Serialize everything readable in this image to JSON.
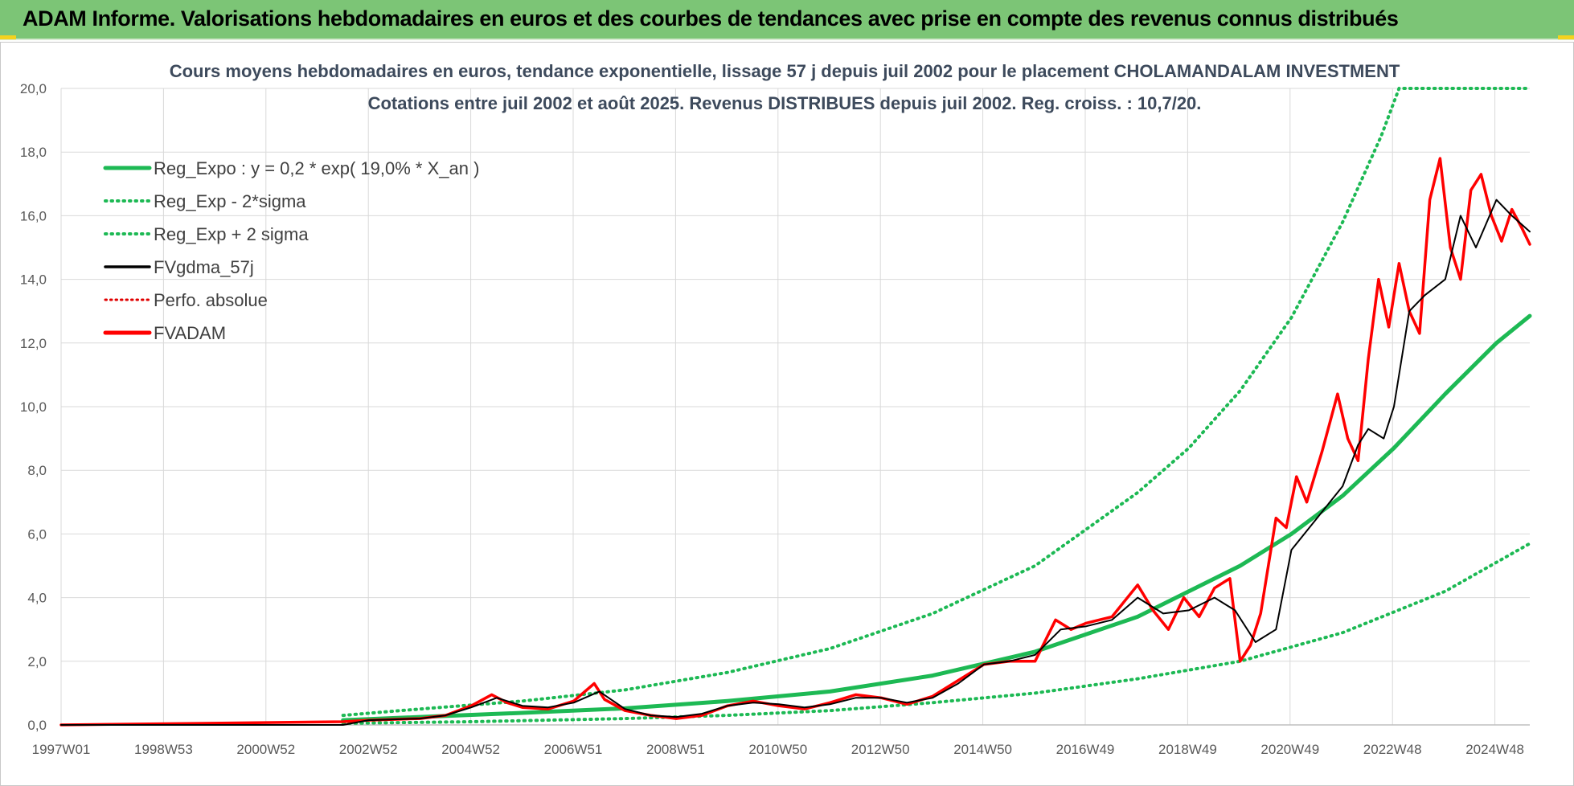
{
  "header": {
    "title": "ADAM Informe. Valorisations hebdomadaires en euros et des courbes de tendances avec prise en compte des revenus connus distribués"
  },
  "colors": {
    "header_bg": "#7cc576",
    "reg_expo": "#1db954",
    "sigma": "#1db954",
    "fvgdma": "#000000",
    "perfo": "#e00000",
    "fvadam": "#ff0000",
    "grid": "#d9d9d9"
  },
  "chart_data": {
    "type": "line",
    "title_line1": "Cours moyens hebdomadaires en euros, tendance exponentielle, lissage 57 j depuis juil 2002 pour le placement CHOLAMANDALAM INVESTMENT",
    "title_line2": "Cotations entre juil 2002 et août 2025. Revenus DISTRIBUES depuis juil 2002. Reg. croiss. : 10,7/20.",
    "x_ticks": [
      "1997W01",
      "1998W53",
      "2000W52",
      "2002W52",
      "2004W52",
      "2006W51",
      "2008W51",
      "2010W50",
      "2012W50",
      "2014W50",
      "2016W49",
      "2018W49",
      "2020W49",
      "2022W48",
      "2024W48"
    ],
    "xlim": [
      1997.0,
      2025.65
    ],
    "y_ticks": [
      "0,0",
      "2,0",
      "4,0",
      "6,0",
      "8,0",
      "10,0",
      "12,0",
      "14,0",
      "16,0",
      "18,0",
      "20,0"
    ],
    "ylim": [
      0,
      20
    ],
    "grid": true,
    "legend_position": "top-left",
    "legend": [
      {
        "key": "reg_expo",
        "label": "Reg_Expo : y = 0,2 * exp( 19,0% *  X_an )",
        "style": "solid-thick"
      },
      {
        "key": "minus2",
        "label": "Reg_Exp - 2*sigma",
        "style": "dotted"
      },
      {
        "key": "plus2",
        "label": "Reg_Exp + 2 sigma",
        "style": "dotted"
      },
      {
        "key": "fvgdma",
        "label": "FVgdma_57j",
        "style": "solid"
      },
      {
        "key": "perfo",
        "label": "Perfo. absolue",
        "style": "dotted"
      },
      {
        "key": "fvadam",
        "label": "FVADAM",
        "style": "solid-thick"
      }
    ],
    "series": [
      {
        "key": "reg_expo",
        "name": "Reg_Expo : y = 0,2 * exp( 19,0% *  X_an )",
        "x": [
          2002.5,
          2004,
          2006,
          2008,
          2010,
          2012,
          2014,
          2016,
          2018,
          2020,
          2021,
          2022,
          2023,
          2024,
          2025,
          2025.65
        ],
        "y": [
          0.15,
          0.25,
          0.38,
          0.52,
          0.75,
          1.05,
          1.55,
          2.3,
          3.4,
          5.0,
          6.0,
          7.2,
          8.7,
          10.4,
          12.0,
          12.85
        ]
      },
      {
        "key": "minus2",
        "name": "Reg_Exp - 2*sigma",
        "x": [
          2002.5,
          2005,
          2008,
          2010,
          2012,
          2014,
          2016,
          2018,
          2020,
          2022,
          2024,
          2025.65
        ],
        "y": [
          0.05,
          0.1,
          0.2,
          0.3,
          0.45,
          0.7,
          1.0,
          1.45,
          2.0,
          2.9,
          4.2,
          5.7
        ]
      },
      {
        "key": "plus2",
        "name": "Reg_Exp + 2 sigma",
        "x": [
          2002.5,
          2004,
          2006,
          2008,
          2010,
          2012,
          2014,
          2016,
          2018,
          2019,
          2020,
          2021,
          2022,
          2022.75,
          2023.1,
          2025.65
        ],
        "y": [
          0.3,
          0.5,
          0.75,
          1.1,
          1.65,
          2.4,
          3.5,
          5.0,
          7.3,
          8.7,
          10.5,
          12.8,
          15.8,
          18.5,
          20.0,
          20.0
        ]
      },
      {
        "key": "fvgdma",
        "name": "FVgdma_57j",
        "x": [
          1997.0,
          2002.5,
          2003,
          2004,
          2004.5,
          2005,
          2005.5,
          2006,
          2006.5,
          2007,
          2007.5,
          2008,
          2008.5,
          2009,
          2009.5,
          2010,
          2010.5,
          2011,
          2011.5,
          2012,
          2012.5,
          2013,
          2013.5,
          2014,
          2014.5,
          2015,
          2015.5,
          2016,
          2016.5,
          2017,
          2017.5,
          2018,
          2018.5,
          2019,
          2019.5,
          2019.9,
          2020.3,
          2020.7,
          2021,
          2021.5,
          2022,
          2022.3,
          2022.5,
          2022.8,
          2023,
          2023.3,
          2023.6,
          2024,
          2024.3,
          2024.6,
          2025,
          2025.3,
          2025.65
        ],
        "y": [
          0,
          0,
          0.15,
          0.2,
          0.3,
          0.55,
          0.85,
          0.6,
          0.55,
          0.7,
          1.05,
          0.5,
          0.3,
          0.25,
          0.35,
          0.6,
          0.7,
          0.65,
          0.55,
          0.65,
          0.85,
          0.85,
          0.7,
          0.85,
          1.3,
          1.9,
          2.0,
          2.2,
          3.0,
          3.1,
          3.3,
          4.0,
          3.5,
          3.6,
          4.0,
          3.6,
          2.6,
          3.0,
          5.5,
          6.5,
          7.5,
          8.8,
          9.3,
          9.0,
          10.0,
          13.0,
          13.5,
          14.0,
          16.0,
          15.0,
          16.5,
          16.0,
          15.5
        ]
      },
      {
        "key": "fvadam",
        "name": "FVADAM",
        "x": [
          1997.0,
          2002.5,
          2003,
          2004,
          2004.5,
          2005,
          2005.4,
          2005.7,
          2006,
          2006.5,
          2007,
          2007.4,
          2007.6,
          2008,
          2008.5,
          2009,
          2009.5,
          2010,
          2010.5,
          2011,
          2011.5,
          2012,
          2012.5,
          2013,
          2013.5,
          2014,
          2014.5,
          2015,
          2015.5,
          2016,
          2016.4,
          2016.7,
          2017,
          2017.5,
          2018,
          2018.3,
          2018.6,
          2018.9,
          2019.2,
          2019.5,
          2019.8,
          2020.0,
          2020.2,
          2020.4,
          2020.7,
          2020.9,
          2021.1,
          2021.3,
          2021.6,
          2021.9,
          2022.1,
          2022.3,
          2022.5,
          2022.7,
          2022.9,
          2023.1,
          2023.3,
          2023.5,
          2023.7,
          2023.9,
          2024.1,
          2024.3,
          2024.5,
          2024.7,
          2024.9,
          2025.1,
          2025.3,
          2025.5,
          2025.65
        ],
        "y": [
          0,
          0.1,
          0.15,
          0.2,
          0.3,
          0.6,
          0.95,
          0.7,
          0.55,
          0.5,
          0.75,
          1.3,
          0.8,
          0.45,
          0.3,
          0.2,
          0.3,
          0.6,
          0.75,
          0.6,
          0.5,
          0.7,
          0.95,
          0.85,
          0.65,
          0.9,
          1.4,
          1.9,
          2.0,
          2.0,
          3.3,
          3.0,
          3.2,
          3.4,
          4.4,
          3.6,
          3.0,
          4.0,
          3.4,
          4.3,
          4.6,
          2.0,
          2.5,
          3.5,
          6.5,
          6.2,
          7.8,
          7.0,
          8.6,
          10.4,
          9.0,
          8.3,
          11.5,
          14.0,
          12.5,
          14.5,
          13.0,
          12.3,
          16.5,
          17.8,
          15.0,
          14.0,
          16.8,
          17.3,
          16.0,
          15.2,
          16.2,
          15.6,
          15.1
        ]
      }
    ]
  }
}
